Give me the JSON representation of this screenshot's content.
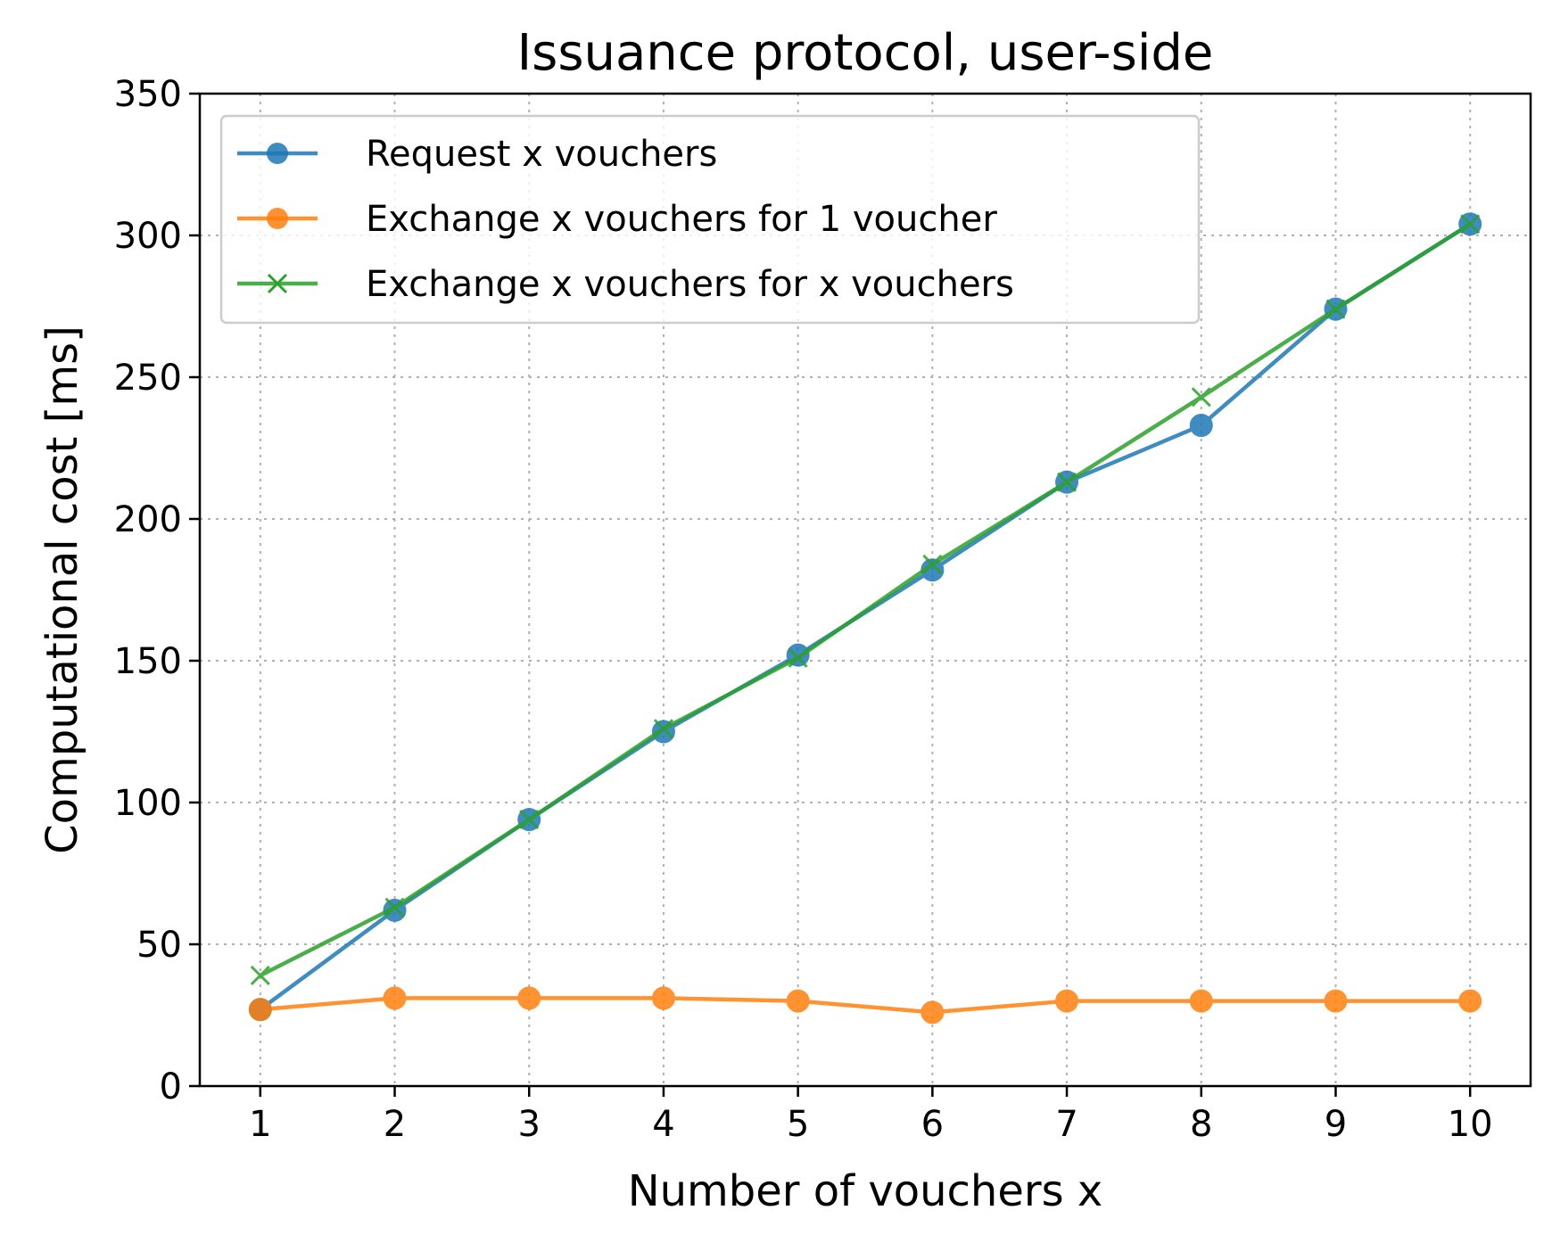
{
  "chart_data": {
    "type": "line",
    "title": "Issuance protocol, user-side",
    "xlabel": "Number of vouchers x",
    "ylabel": "Computational cost [ms]",
    "x": [
      1,
      2,
      3,
      4,
      5,
      6,
      7,
      8,
      9,
      10
    ],
    "xlim": [
      0.55,
      10.45
    ],
    "ylim": [
      0,
      350
    ],
    "x_ticks": [
      "1",
      "2",
      "3",
      "4",
      "5",
      "6",
      "7",
      "8",
      "9",
      "10"
    ],
    "y_ticks": [
      0,
      50,
      100,
      150,
      200,
      250,
      300,
      350
    ],
    "grid": true,
    "legend_position": "top-left",
    "series": [
      {
        "name": "Request x vouchers",
        "color": "#1f77b4",
        "marker": "circle",
        "values": [
          27,
          62,
          94,
          125,
          152,
          182,
          213,
          233,
          274,
          304
        ]
      },
      {
        "name": "Exchange x vouchers for 1 voucher",
        "color": "#ff7f0e",
        "marker": "circle",
        "values": [
          27,
          31,
          31,
          31,
          30,
          26,
          30,
          30,
          30,
          30
        ]
      },
      {
        "name": "Exchange x vouchers for x vouchers",
        "color": "#2ca02c",
        "marker": "x",
        "values": [
          39,
          63,
          94,
          126,
          151,
          184,
          213,
          243,
          274,
          304
        ]
      }
    ]
  }
}
